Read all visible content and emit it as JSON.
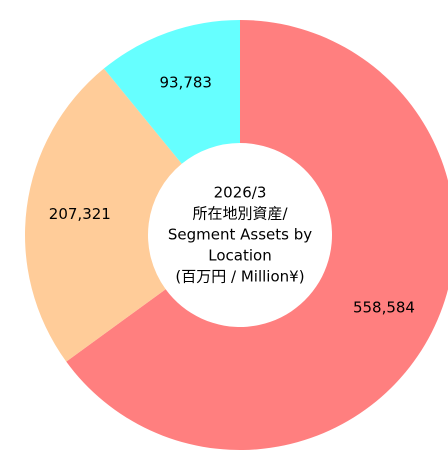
{
  "chart_data": {
    "type": "donut",
    "center_text": [
      "2026/3",
      "所在地別資産/",
      "Segment Assets by",
      "Location",
      "(百万円 / Million¥)"
    ],
    "values": [
      558584,
      207321,
      93783
    ],
    "value_labels": [
      "558,584",
      "207,321",
      "93,783"
    ],
    "colors": [
      "#ff7f7f",
      "#ffcc99",
      "#66ffff"
    ]
  }
}
